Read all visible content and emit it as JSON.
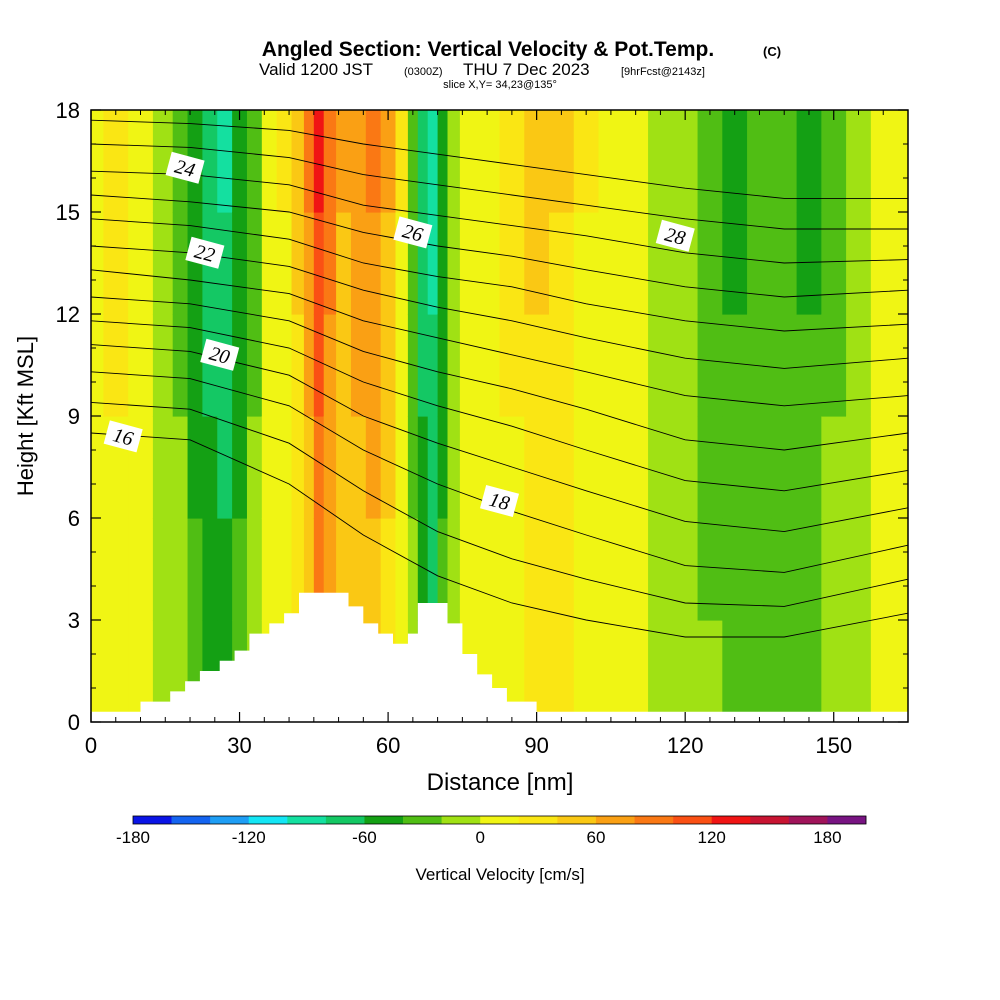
{
  "chart_data": {
    "type": "heatmap",
    "title": "Angled Section: Vertical Velocity & Pot.Temp.",
    "title_units": "(C)",
    "subtitle": {
      "valid": "Valid 1200 JST",
      "zulu": "(0300Z)",
      "date": "THU 7 Dec 2023",
      "forecast": "[9hrFcst@2143z]"
    },
    "slice_info": "slice X,Y= 34,23@135°",
    "xlabel": "Distance [nm]",
    "ylabel": "Height [Kft MSL]",
    "xlim": [
      0,
      165
    ],
    "ylim": [
      0,
      18
    ],
    "xticks": [
      "0",
      "30",
      "60",
      "90",
      "120",
      "150"
    ],
    "xtick_values": [
      0,
      30,
      60,
      90,
      120,
      150
    ],
    "yticks": [
      "0",
      "3",
      "6",
      "9",
      "12",
      "15",
      "18"
    ],
    "ytick_values": [
      0,
      3,
      6,
      9,
      12,
      15,
      18
    ],
    "colorbar": {
      "label": "Vertical Velocity [cm/s]",
      "range": [
        -180,
        200
      ],
      "step": 20,
      "tick_labels": [
        "-180",
        "-120",
        "-60",
        "0",
        "60",
        "120",
        "180"
      ],
      "tick_values": [
        -180,
        -120,
        -60,
        0,
        60,
        120,
        180
      ],
      "colors": [
        "#0a14e6",
        "#1464f0",
        "#1e9ef5",
        "#14e6f5",
        "#14e0a0",
        "#14c864",
        "#14a014",
        "#50be14",
        "#a0e114",
        "#f0f514",
        "#fae614",
        "#fac814",
        "#faa014",
        "#fa7814",
        "#fa5014",
        "#f01414",
        "#c81432",
        "#a0145a",
        "#781482"
      ]
    },
    "velocity_columns": [
      {
        "x": 0,
        "value": 15
      },
      {
        "x": 5,
        "value": 25
      },
      {
        "x": 10,
        "value": 10
      },
      {
        "x": 15,
        "value": -5
      },
      {
        "x": 18,
        "value": -25
      },
      {
        "x": 21,
        "value": -60
      },
      {
        "x": 24,
        "value": -75
      },
      {
        "x": 27,
        "value": -85
      },
      {
        "x": 30,
        "value": -60
      },
      {
        "x": 33,
        "value": -25
      },
      {
        "x": 36,
        "value": 5
      },
      {
        "x": 39,
        "value": 20
      },
      {
        "x": 42,
        "value": 45
      },
      {
        "x": 44,
        "value": 80
      },
      {
        "x": 46,
        "value": 125
      },
      {
        "x": 48,
        "value": 95
      },
      {
        "x": 51,
        "value": 65
      },
      {
        "x": 54,
        "value": 75
      },
      {
        "x": 57,
        "value": 85
      },
      {
        "x": 60,
        "value": 60
      },
      {
        "x": 63,
        "value": 20
      },
      {
        "x": 65,
        "value": -30
      },
      {
        "x": 67,
        "value": -75
      },
      {
        "x": 69,
        "value": -95
      },
      {
        "x": 71,
        "value": -60
      },
      {
        "x": 73,
        "value": -20
      },
      {
        "x": 76,
        "value": 5
      },
      {
        "x": 80,
        "value": 15
      },
      {
        "x": 85,
        "value": 25
      },
      {
        "x": 90,
        "value": 45
      },
      {
        "x": 95,
        "value": 40
      },
      {
        "x": 100,
        "value": 20
      },
      {
        "x": 105,
        "value": 10
      },
      {
        "x": 110,
        "value": 0
      },
      {
        "x": 115,
        "value": -10
      },
      {
        "x": 120,
        "value": -20
      },
      {
        "x": 125,
        "value": -35
      },
      {
        "x": 130,
        "value": -45
      },
      {
        "x": 135,
        "value": -40
      },
      {
        "x": 140,
        "value": -40
      },
      {
        "x": 145,
        "value": -45
      },
      {
        "x": 150,
        "value": -25
      },
      {
        "x": 155,
        "value": -10
      },
      {
        "x": 160,
        "value": 5
      },
      {
        "x": 165,
        "value": 10
      }
    ],
    "theta_contours": [
      {
        "level": 16,
        "label": "16",
        "label_pos": [
          6.5,
          8.4
        ],
        "points": [
          [
            0,
            8.5
          ],
          [
            20,
            8.3
          ],
          [
            40,
            7.0
          ],
          [
            55,
            5.5
          ],
          [
            70,
            4.3
          ],
          [
            85,
            3.5
          ],
          [
            100,
            3.0
          ],
          [
            120,
            2.5
          ],
          [
            140,
            2.5
          ],
          [
            165,
            3.2
          ]
        ]
      },
      {
        "level": 17,
        "points": [
          [
            0,
            9.4
          ],
          [
            20,
            9.2
          ],
          [
            40,
            8.2
          ],
          [
            55,
            6.8
          ],
          [
            70,
            5.6
          ],
          [
            85,
            4.8
          ],
          [
            100,
            4.2
          ],
          [
            120,
            3.5
          ],
          [
            140,
            3.4
          ],
          [
            165,
            4.2
          ]
        ]
      },
      {
        "level": 18,
        "label": "18",
        "label_pos": [
          82.5,
          6.5
        ],
        "points": [
          [
            0,
            10.3
          ],
          [
            20,
            10.1
          ],
          [
            40,
            9.3
          ],
          [
            55,
            8.0
          ],
          [
            70,
            7.0
          ],
          [
            85,
            6.2
          ],
          [
            100,
            5.5
          ],
          [
            120,
            4.6
          ],
          [
            140,
            4.4
          ],
          [
            165,
            5.2
          ]
        ]
      },
      {
        "level": 19,
        "points": [
          [
            0,
            11.1
          ],
          [
            20,
            10.9
          ],
          [
            40,
            10.2
          ],
          [
            55,
            9.0
          ],
          [
            70,
            8.2
          ],
          [
            85,
            7.5
          ],
          [
            100,
            6.8
          ],
          [
            120,
            5.9
          ],
          [
            140,
            5.6
          ],
          [
            165,
            6.3
          ]
        ]
      },
      {
        "level": 20,
        "label": "20",
        "label_pos": [
          26,
          10.8
        ],
        "points": [
          [
            0,
            11.8
          ],
          [
            20,
            11.6
          ],
          [
            40,
            11.0
          ],
          [
            55,
            10.0
          ],
          [
            70,
            9.3
          ],
          [
            85,
            8.7
          ],
          [
            100,
            8.0
          ],
          [
            120,
            7.1
          ],
          [
            140,
            6.8
          ],
          [
            165,
            7.4
          ]
        ]
      },
      {
        "level": 21,
        "points": [
          [
            0,
            12.5
          ],
          [
            20,
            12.3
          ],
          [
            40,
            11.8
          ],
          [
            55,
            10.9
          ],
          [
            70,
            10.3
          ],
          [
            85,
            9.8
          ],
          [
            100,
            9.2
          ],
          [
            120,
            8.3
          ],
          [
            140,
            8.0
          ],
          [
            165,
            8.5
          ]
        ]
      },
      {
        "level": 22,
        "label": "22",
        "label_pos": [
          23,
          13.8
        ],
        "points": [
          [
            0,
            13.3
          ],
          [
            20,
            13.0
          ],
          [
            40,
            12.6
          ],
          [
            55,
            11.8
          ],
          [
            70,
            11.3
          ],
          [
            85,
            10.8
          ],
          [
            100,
            10.3
          ],
          [
            120,
            9.6
          ],
          [
            140,
            9.3
          ],
          [
            165,
            9.6
          ]
        ]
      },
      {
        "level": 23,
        "points": [
          [
            0,
            14.0
          ],
          [
            20,
            13.8
          ],
          [
            40,
            13.4
          ],
          [
            55,
            12.7
          ],
          [
            70,
            12.2
          ],
          [
            85,
            11.8
          ],
          [
            100,
            11.3
          ],
          [
            120,
            10.7
          ],
          [
            140,
            10.4
          ],
          [
            165,
            10.7
          ]
        ]
      },
      {
        "level": 24,
        "label": "24",
        "label_pos": [
          19,
          16.3
        ],
        "points": [
          [
            0,
            14.8
          ],
          [
            20,
            14.6
          ],
          [
            40,
            14.2
          ],
          [
            55,
            13.5
          ],
          [
            70,
            13.1
          ],
          [
            85,
            12.8
          ],
          [
            100,
            12.3
          ],
          [
            120,
            11.8
          ],
          [
            140,
            11.5
          ],
          [
            165,
            11.7
          ]
        ]
      },
      {
        "level": 25,
        "points": [
          [
            0,
            15.5
          ],
          [
            20,
            15.3
          ],
          [
            40,
            15.0
          ],
          [
            55,
            14.4
          ],
          [
            70,
            14.0
          ],
          [
            85,
            13.7
          ],
          [
            100,
            13.3
          ],
          [
            120,
            12.8
          ],
          [
            140,
            12.5
          ],
          [
            165,
            12.7
          ]
        ]
      },
      {
        "level": 26,
        "label": "26",
        "label_pos": [
          65,
          14.4
        ],
        "points": [
          [
            0,
            16.2
          ],
          [
            20,
            16.1
          ],
          [
            40,
            15.8
          ],
          [
            55,
            15.2
          ],
          [
            70,
            14.9
          ],
          [
            85,
            14.6
          ],
          [
            100,
            14.3
          ],
          [
            120,
            13.8
          ],
          [
            140,
            13.5
          ],
          [
            165,
            13.6
          ]
        ]
      },
      {
        "level": 27,
        "points": [
          [
            0,
            17.0
          ],
          [
            20,
            16.9
          ],
          [
            40,
            16.6
          ],
          [
            55,
            16.1
          ],
          [
            70,
            15.8
          ],
          [
            85,
            15.5
          ],
          [
            100,
            15.2
          ],
          [
            120,
            14.8
          ],
          [
            140,
            14.5
          ],
          [
            165,
            14.5
          ]
        ]
      },
      {
        "level": 28,
        "label": "28",
        "label_pos": [
          118,
          14.3
        ],
        "points": [
          [
            0,
            17.7
          ],
          [
            20,
            17.6
          ],
          [
            40,
            17.4
          ],
          [
            55,
            17.0
          ],
          [
            70,
            16.7
          ],
          [
            85,
            16.4
          ],
          [
            100,
            16.1
          ],
          [
            120,
            15.7
          ],
          [
            140,
            15.4
          ],
          [
            165,
            15.4
          ]
        ]
      }
    ],
    "terrain": [
      [
        0,
        0.3
      ],
      [
        10,
        0.3
      ],
      [
        10,
        0.6
      ],
      [
        16,
        0.6
      ],
      [
        16,
        0.9
      ],
      [
        19,
        0.9
      ],
      [
        19,
        1.2
      ],
      [
        22,
        1.2
      ],
      [
        22,
        1.5
      ],
      [
        26,
        1.5
      ],
      [
        26,
        1.8
      ],
      [
        29,
        1.8
      ],
      [
        29,
        2.1
      ],
      [
        32,
        2.1
      ],
      [
        32,
        2.6
      ],
      [
        36,
        2.6
      ],
      [
        36,
        2.9
      ],
      [
        39,
        2.9
      ],
      [
        39,
        3.2
      ],
      [
        42,
        3.2
      ],
      [
        42,
        3.8
      ],
      [
        52,
        3.8
      ],
      [
        52,
        3.4
      ],
      [
        55,
        3.4
      ],
      [
        55,
        2.9
      ],
      [
        58,
        2.9
      ],
      [
        58,
        2.6
      ],
      [
        61,
        2.6
      ],
      [
        61,
        2.3
      ],
      [
        64,
        2.3
      ],
      [
        64,
        2.6
      ],
      [
        66,
        2.6
      ],
      [
        66,
        3.5
      ],
      [
        72,
        3.5
      ],
      [
        72,
        2.9
      ],
      [
        75,
        2.9
      ],
      [
        75,
        2.0
      ],
      [
        78,
        2.0
      ],
      [
        78,
        1.4
      ],
      [
        81,
        1.4
      ],
      [
        81,
        1.0
      ],
      [
        84,
        1.0
      ],
      [
        84,
        0.6
      ],
      [
        90,
        0.6
      ],
      [
        90,
        0.3
      ],
      [
        165,
        0.3
      ]
    ]
  }
}
